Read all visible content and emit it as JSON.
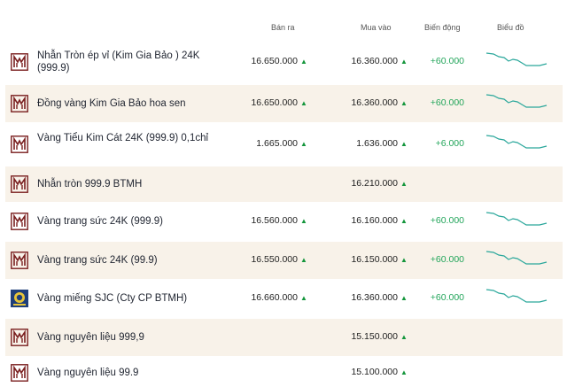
{
  "header": {
    "ban_ra": "Bán ra",
    "mua_vao": "Mua vào",
    "bien_dong": "Biến động",
    "bieu_do": "Biểu đồ"
  },
  "colors": {
    "row_alt_bg": "#f8f2e9",
    "logo_brown": "#7a1f1f",
    "up_green": "#14963c",
    "delta_green": "#22a55a",
    "spark_teal": "#2aa79b"
  },
  "rows": [
    {
      "logo": "btmh-logo-icon",
      "name": "Nhẫn Tròn ép vỉ (Kim Gia Bảo ) 24K (999.9)",
      "ban_ra": "16.650.000",
      "mua_vao": "16.360.000",
      "bien_dong": "+60.000",
      "has_chart": true
    },
    {
      "logo": "btmh-logo-icon",
      "name": "Đồng vàng Kim Gia Bảo hoa sen",
      "ban_ra": "16.650.000",
      "mua_vao": "16.360.000",
      "bien_dong": "+60.000",
      "has_chart": true
    },
    {
      "logo": "btmh-logo-icon",
      "name": "Vàng Tiểu Kim Cát 24K (999.9) 0,1chỉ",
      "ban_ra": "1.665.000",
      "mua_vao": "1.636.000",
      "bien_dong": "+6.000",
      "has_chart": true
    },
    {
      "logo": "btmh-logo-icon",
      "name": "Nhẫn tròn 999.9 BTMH",
      "ban_ra": "",
      "mua_vao": "16.210.000",
      "bien_dong": "",
      "has_chart": false
    },
    {
      "logo": "btmh-logo-icon",
      "name": "Vàng trang sức 24K (999.9)",
      "ban_ra": "16.560.000",
      "mua_vao": "16.160.000",
      "bien_dong": "+60.000",
      "has_chart": true
    },
    {
      "logo": "btmh-logo-icon",
      "name": "Vàng trang sức 24K (99.9)",
      "ban_ra": "16.550.000",
      "mua_vao": "16.150.000",
      "bien_dong": "+60.000",
      "has_chart": true
    },
    {
      "logo": "sjc-logo-icon",
      "name": "Vàng miếng SJC (Cty CP BTMH)",
      "ban_ra": "16.660.000",
      "mua_vao": "16.360.000",
      "bien_dong": "+60.000",
      "has_chart": true
    },
    {
      "logo": "btmh-logo-icon",
      "name": "Vàng nguyên liệu 999,9",
      "ban_ra": "",
      "mua_vao": "15.150.000",
      "bien_dong": "",
      "has_chart": false
    },
    {
      "logo": "btmh-logo-icon",
      "name": "Vàng nguyên liệu 99.9",
      "ban_ra": "",
      "mua_vao": "15.100.000",
      "bien_dong": "",
      "has_chart": false
    }
  ]
}
